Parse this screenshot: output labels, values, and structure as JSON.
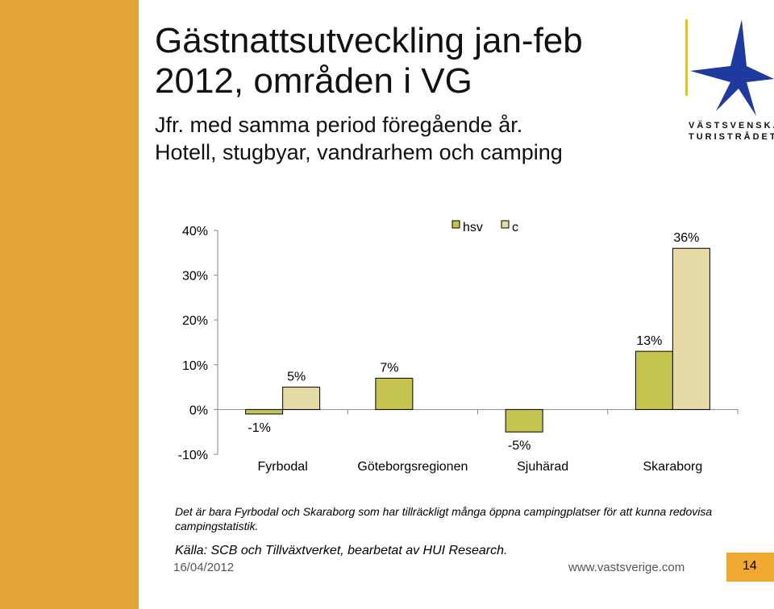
{
  "slide": {
    "title_line1": "Gästnattsutveckling jan-feb",
    "title_line2": "2012, områden i VG",
    "subtitle_line1": "Jfr. med samma period föregående år.",
    "subtitle_line2": "Hotell, stugbyar, vandrarhem och camping",
    "logo_line1": "VÄSTSVENSKA",
    "logo_line2": "TURISTRÅDET",
    "note": "Det är bara Fyrbodal och Skaraborg som har tillräckligt många öppna campingplatser för att kunna redovisa campingstatistik.",
    "source": "Källa: SCB och Tillväxtverket, bearbetat av HUI Research.",
    "date": "16/04/2012",
    "url": "www.vastsverige.com",
    "page_number": "14"
  },
  "colors": {
    "accent": "#e2a437",
    "hsv_fill": "#c4c44e",
    "c_fill": "#e6daa6",
    "axis": "#888888"
  },
  "chart_data": {
    "type": "bar",
    "categories": [
      "Fyrbodal",
      "Göteborgsregionen",
      "Sjuhärad",
      "Skaraborg"
    ],
    "series": [
      {
        "name": "hsv",
        "values": [
          -1,
          7,
          -5,
          13
        ]
      },
      {
        "name": "c",
        "values": [
          5,
          null,
          null,
          36
        ]
      }
    ],
    "data_labels": [
      "-1%",
      "5%",
      "7%",
      "-5%",
      "13%",
      "36%"
    ],
    "ylim": [
      -10,
      40
    ],
    "y_ticks": [
      -10,
      0,
      10,
      20,
      30,
      40
    ],
    "y_tick_labels": [
      "-10%",
      "0%",
      "10%",
      "20%",
      "30%",
      "40%"
    ],
    "legend": [
      "hsv",
      "c"
    ],
    "legend_position": "top",
    "grid": false
  }
}
